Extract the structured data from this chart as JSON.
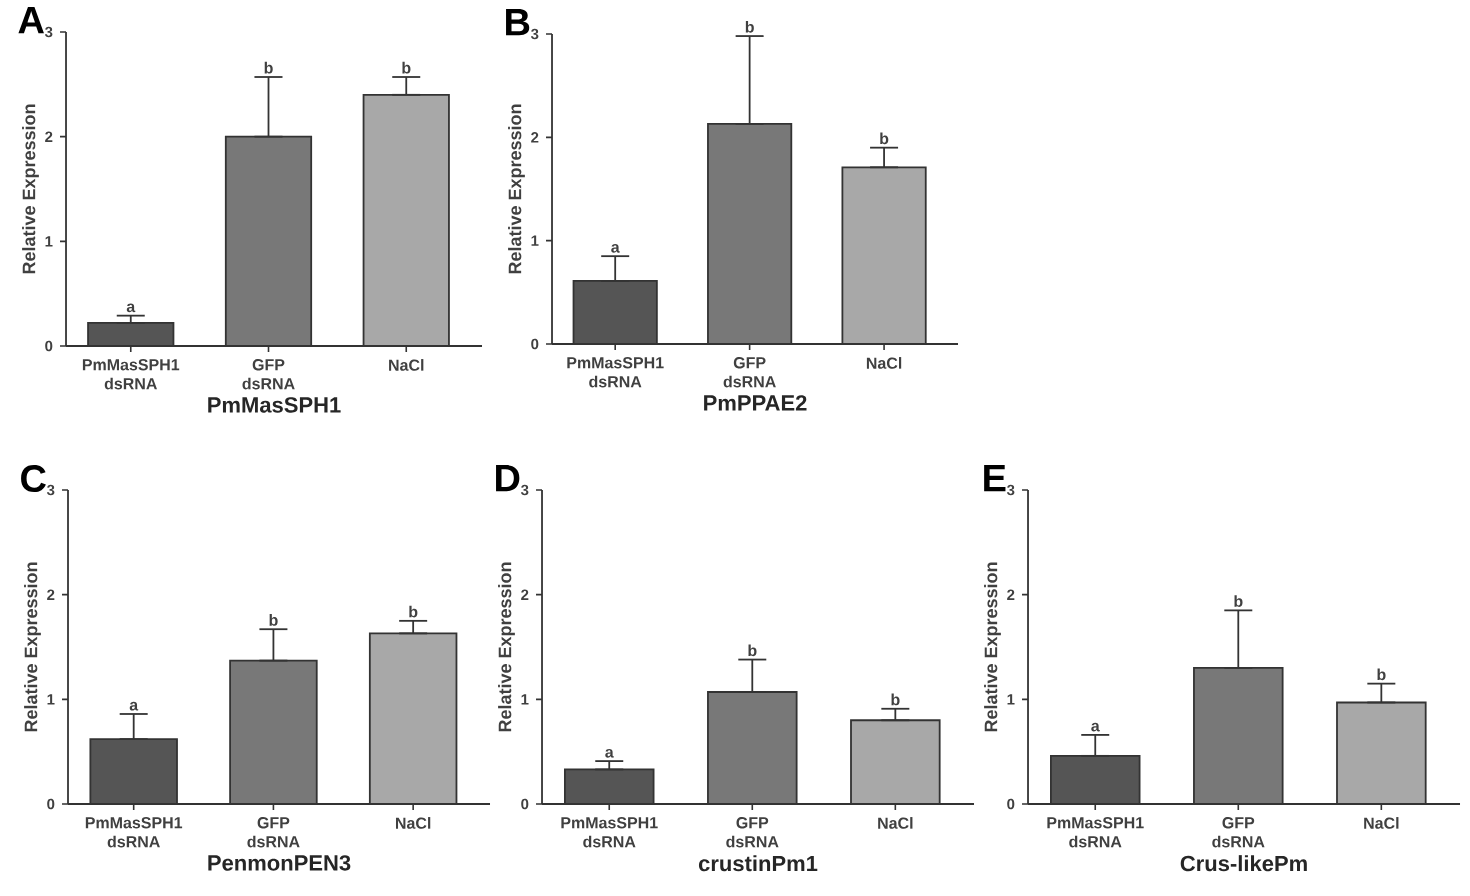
{
  "chart_data": [
    {
      "type": "bar",
      "title": "A",
      "xlabel": "PmMasSPH1",
      "ylabel": "Relative Expression",
      "categories": [
        "PmMasSPH1 dsRNA",
        "GFP dsRNA",
        "NaCl"
      ],
      "values": [
        0.22,
        2.0,
        2.4
      ],
      "colors": [
        "#555555",
        "#787878",
        "#a8a8a8"
      ],
      "errors": [
        [
          0.22,
          0.29
        ],
        [
          2.0,
          2.57
        ],
        [
          2.4,
          2.57
        ]
      ],
      "ylim": [
        0,
        3
      ],
      "yticks": [
        0,
        1,
        2,
        3
      ],
      "annotations": [
        {
          "text": "a",
          "x": "PmMasSPH1 dsRNA",
          "y": 0.29
        },
        {
          "text": "b",
          "x": "GFP dsRNA",
          "y": 2.57
        },
        {
          "text": "b",
          "x": "NaCl",
          "y": 2.57
        }
      ]
    },
    {
      "type": "bar",
      "title": "B",
      "xlabel": "PmPPAE2",
      "ylabel": "Relative Expression",
      "categories": [
        "PmMasSPH1 dsRNA",
        "GFP dsRNA",
        "NaCl"
      ],
      "values": [
        0.61,
        2.13,
        1.71
      ],
      "colors": [
        "#555555",
        "#787878",
        "#a8a8a8"
      ],
      "errors": [
        [
          0.61,
          0.85
        ],
        [
          2.13,
          2.98
        ],
        [
          1.71,
          1.9
        ]
      ],
      "ylim": [
        0,
        3
      ],
      "yticks": [
        0,
        1,
        2,
        3
      ],
      "annotations": [
        {
          "text": "a",
          "x": "PmMasSPH1 dsRNA",
          "y": 0.85
        },
        {
          "text": "b",
          "x": "GFP dsRNA",
          "y": 2.98
        },
        {
          "text": "b",
          "x": "NaCl",
          "y": 1.9
        }
      ]
    },
    {
      "type": "bar",
      "title": "C",
      "xlabel": "PenmonPEN3",
      "ylabel": "Relative Expression",
      "categories": [
        "PmMasSPH1 dsRNA",
        "GFP dsRNA",
        "NaCl"
      ],
      "values": [
        0.62,
        1.37,
        1.63
      ],
      "colors": [
        "#555555",
        "#787878",
        "#a8a8a8"
      ],
      "errors": [
        [
          0.62,
          0.86
        ],
        [
          1.37,
          1.67
        ],
        [
          1.63,
          1.75
        ]
      ],
      "ylim": [
        0,
        3
      ],
      "yticks": [
        0,
        1,
        2,
        3
      ],
      "annotations": [
        {
          "text": "a",
          "x": "PmMasSPH1 dsRNA",
          "y": 0.86
        },
        {
          "text": "b",
          "x": "GFP dsRNA",
          "y": 1.67
        },
        {
          "text": "b",
          "x": "NaCl",
          "y": 1.75
        }
      ]
    },
    {
      "type": "bar",
      "title": "D",
      "xlabel": "crustinPm1",
      "ylabel": "Relative Expression",
      "categories": [
        "PmMasSPH1 dsRNA",
        "GFP dsRNA",
        "NaCl"
      ],
      "values": [
        0.33,
        1.07,
        0.8
      ],
      "colors": [
        "#555555",
        "#787878",
        "#a8a8a8"
      ],
      "errors": [
        [
          0.33,
          0.41
        ],
        [
          1.07,
          1.38
        ],
        [
          0.8,
          0.91
        ]
      ],
      "ylim": [
        0,
        3
      ],
      "yticks": [
        0,
        1,
        2,
        3
      ],
      "annotations": [
        {
          "text": "a",
          "x": "PmMasSPH1 dsRNA",
          "y": 0.41
        },
        {
          "text": "b",
          "x": "GFP dsRNA",
          "y": 1.38
        },
        {
          "text": "b",
          "x": "NaCl",
          "y": 0.91
        }
      ]
    },
    {
      "type": "bar",
      "title": "E",
      "xlabel": "Crus-likePm",
      "ylabel": "Relative Expression",
      "categories": [
        "PmMasSPH1 dsRNA",
        "GFP dsRNA",
        "NaCl"
      ],
      "values": [
        0.46,
        1.3,
        0.97
      ],
      "colors": [
        "#555555",
        "#787878",
        "#a8a8a8"
      ],
      "errors": [
        [
          0.46,
          0.66
        ],
        [
          1.3,
          1.85
        ],
        [
          0.97,
          1.15
        ]
      ],
      "ylim": [
        0,
        3
      ],
      "yticks": [
        0,
        1,
        2,
        3
      ],
      "annotations": [
        {
          "text": "a",
          "x": "PmMasSPH1 dsRNA",
          "y": 0.66
        },
        {
          "text": "b",
          "x": "GFP dsRNA",
          "y": 1.85
        },
        {
          "text": "b",
          "x": "NaCl",
          "y": 1.15
        }
      ]
    }
  ]
}
